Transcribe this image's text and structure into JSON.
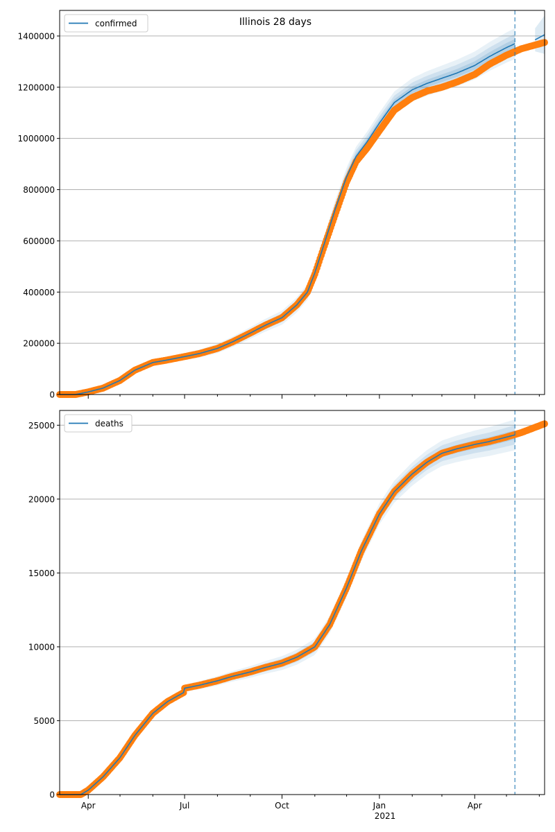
{
  "title": "Illinois 28 days",
  "colors": {
    "forecast": "#1f77b4",
    "observed": "#ff7f0e",
    "band": "#1f77b4",
    "cutoff": "#1f77b4",
    "grid": "#b0b0b0"
  },
  "x_axis": {
    "ticks": [
      {
        "label": "Apr",
        "date": "2020-04-01"
      },
      {
        "label": "Jul",
        "date": "2020-07-01"
      },
      {
        "label": "Oct",
        "date": "2020-10-01"
      },
      {
        "label": "Jan",
        "date": "2021-01-01"
      },
      {
        "label": "Apr",
        "date": "2021-04-01"
      }
    ],
    "year_label": "2021",
    "range": [
      "2020-03-05",
      "2021-06-06"
    ]
  },
  "chart_data": [
    {
      "type": "line",
      "title": "Illinois 28 days",
      "legend": "confirmed",
      "legend_position": "top-left",
      "grid": "horizontal",
      "ylim": [
        0,
        1500000
      ],
      "yticks": [
        0,
        200000,
        400000,
        600000,
        800000,
        1000000,
        1200000,
        1400000
      ],
      "cutoff_date": "2021-05-09",
      "observed_end": "2021-06-06",
      "observed": {
        "dates": [
          "2020-03-05",
          "2020-03-20",
          "2020-04-01",
          "2020-04-15",
          "2020-05-01",
          "2020-05-15",
          "2020-06-01",
          "2020-06-15",
          "2020-07-01",
          "2020-07-15",
          "2020-08-01",
          "2020-08-15",
          "2020-09-01",
          "2020-09-15",
          "2020-10-01",
          "2020-10-15",
          "2020-10-25",
          "2020-11-01",
          "2020-11-10",
          "2020-11-20",
          "2020-12-01",
          "2020-12-10",
          "2020-12-20",
          "2021-01-01",
          "2021-01-15",
          "2021-02-01",
          "2021-02-15",
          "2021-03-01",
          "2021-03-15",
          "2021-04-01",
          "2021-04-15",
          "2021-05-01",
          "2021-05-15",
          "2021-06-06"
        ],
        "values": [
          0,
          0,
          10000,
          25000,
          55000,
          95000,
          125000,
          135000,
          148000,
          160000,
          180000,
          205000,
          240000,
          270000,
          300000,
          350000,
          400000,
          470000,
          580000,
          700000,
          830000,
          910000,
          960000,
          1030000,
          1110000,
          1160000,
          1185000,
          1200000,
          1220000,
          1250000,
          1290000,
          1325000,
          1350000,
          1375000
        ]
      },
      "forecast": {
        "dates": [
          "2020-03-05",
          "2020-03-20",
          "2020-04-01",
          "2020-04-15",
          "2020-05-01",
          "2020-05-15",
          "2020-06-01",
          "2020-06-15",
          "2020-07-01",
          "2020-07-15",
          "2020-08-01",
          "2020-08-15",
          "2020-09-01",
          "2020-09-15",
          "2020-10-01",
          "2020-10-15",
          "2020-10-25",
          "2020-11-01",
          "2020-11-10",
          "2020-11-20",
          "2020-12-01",
          "2020-12-10",
          "2020-12-20",
          "2021-01-01",
          "2021-01-15",
          "2021-02-01",
          "2021-02-15",
          "2021-03-01",
          "2021-03-15",
          "2021-04-01",
          "2021-04-15",
          "2021-05-01",
          "2021-05-09"
        ],
        "values": [
          0,
          0,
          10000,
          25000,
          55000,
          95000,
          125000,
          135000,
          148000,
          160000,
          180000,
          205000,
          240000,
          270000,
          300000,
          350000,
          400000,
          475000,
          590000,
          720000,
          850000,
          930000,
          985000,
          1060000,
          1140000,
          1190000,
          1215000,
          1235000,
          1255000,
          1285000,
          1320000,
          1355000,
          1370000
        ]
      },
      "tail_forecast": {
        "dates": [
          "2021-05-28",
          "2021-06-06"
        ],
        "values": [
          1385000,
          1405000
        ]
      }
    },
    {
      "type": "line",
      "legend": "deaths",
      "legend_position": "top-left",
      "grid": "horizontal",
      "ylim": [
        0,
        26000
      ],
      "yticks": [
        0,
        5000,
        10000,
        15000,
        20000,
        25000
      ],
      "cutoff_date": "2021-05-09",
      "observed_end": "2021-06-06",
      "observed": {
        "dates": [
          "2020-03-05",
          "2020-03-25",
          "2020-04-01",
          "2020-04-15",
          "2020-05-01",
          "2020-05-15",
          "2020-06-01",
          "2020-06-15",
          "2020-06-30",
          "2020-07-01",
          "2020-07-15",
          "2020-08-01",
          "2020-08-15",
          "2020-09-01",
          "2020-09-15",
          "2020-10-01",
          "2020-10-15",
          "2020-11-01",
          "2020-11-15",
          "2020-12-01",
          "2020-12-15",
          "2021-01-01",
          "2021-01-15",
          "2021-02-01",
          "2021-02-15",
          "2021-03-01",
          "2021-03-15",
          "2021-04-01",
          "2021-04-15",
          "2021-05-01",
          "2021-05-15",
          "2021-06-06"
        ],
        "values": [
          0,
          0,
          300,
          1200,
          2500,
          4000,
          5500,
          6300,
          6900,
          7200,
          7400,
          7700,
          8000,
          8300,
          8600,
          8900,
          9300,
          10000,
          11500,
          14000,
          16500,
          19000,
          20500,
          21700,
          22500,
          23100,
          23400,
          23700,
          23900,
          24200,
          24500,
          25100
        ]
      },
      "forecast": {
        "dates": [
          "2020-03-05",
          "2020-03-25",
          "2020-04-01",
          "2020-04-15",
          "2020-05-01",
          "2020-05-15",
          "2020-06-01",
          "2020-06-15",
          "2020-06-30",
          "2020-07-01",
          "2020-07-15",
          "2020-08-01",
          "2020-08-15",
          "2020-09-01",
          "2020-09-15",
          "2020-10-01",
          "2020-10-15",
          "2020-11-01",
          "2020-11-15",
          "2020-12-01",
          "2020-12-15",
          "2021-01-01",
          "2021-01-15",
          "2021-02-01",
          "2021-02-15",
          "2021-03-01",
          "2021-03-15",
          "2021-04-01",
          "2021-04-15",
          "2021-05-01",
          "2021-05-09"
        ],
        "values": [
          0,
          0,
          300,
          1200,
          2500,
          4000,
          5500,
          6300,
          6900,
          7200,
          7400,
          7700,
          8000,
          8300,
          8600,
          8900,
          9300,
          10000,
          11500,
          14000,
          16500,
          19000,
          20500,
          21700,
          22500,
          23100,
          23400,
          23700,
          23900,
          24200,
          24350
        ]
      }
    }
  ]
}
